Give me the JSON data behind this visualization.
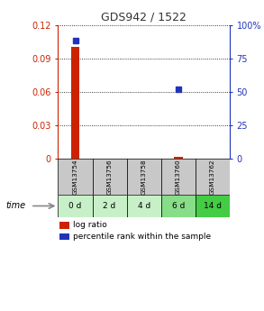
{
  "title": "GDS942 / 1522",
  "samples": [
    "GSM13754",
    "GSM13756",
    "GSM13758",
    "GSM13760",
    "GSM13762"
  ],
  "time_labels": [
    "0 d",
    "2 d",
    "4 d",
    "6 d",
    "14 d"
  ],
  "log_ratio": [
    0.1005,
    0.0,
    0.0,
    0.002,
    0.0
  ],
  "percentile_rank": [
    88.0,
    0.0,
    0.0,
    52.0,
    0.0
  ],
  "ylim_left": [
    0,
    0.12
  ],
  "ylim_right": [
    0,
    100
  ],
  "yticks_left": [
    0,
    0.03,
    0.06,
    0.09,
    0.12
  ],
  "yticks_right": [
    0,
    25,
    50,
    75,
    100
  ],
  "bar_color": "#cc2200",
  "dot_color": "#2233bb",
  "bg_color": "#ffffff",
  "gsm_row_color": "#c8c8c8",
  "time_row_colors": [
    "#c8f0c8",
    "#c8f0c8",
    "#c8f0c8",
    "#88dd88",
    "#44cc44"
  ],
  "title_color": "#333333",
  "left_axis_color": "#cc2200",
  "right_axis_color": "#2233bb"
}
